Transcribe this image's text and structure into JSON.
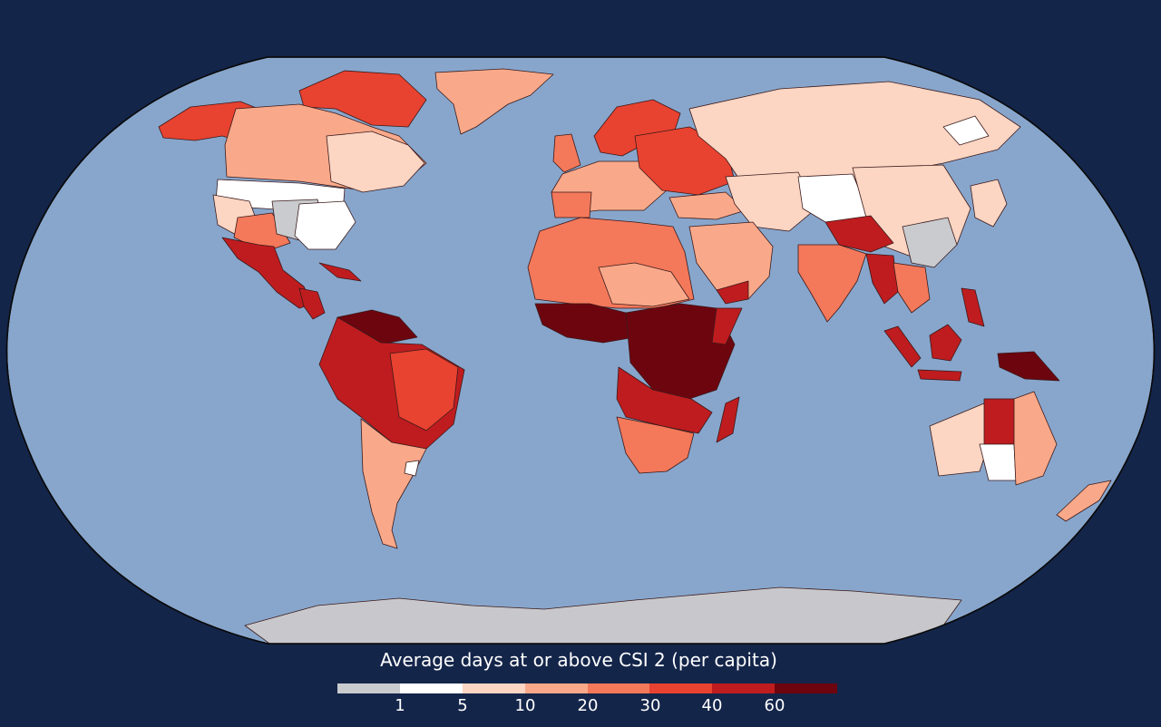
{
  "legend": {
    "title": "Average days at or above CSI 2 (per capita)",
    "colors": [
      "#c9cbce",
      "#ffffff",
      "#fcd5c3",
      "#f9a98a",
      "#f4785a",
      "#e84230",
      "#bf1c1f",
      "#6d050f"
    ],
    "tick_labels": [
      "1",
      "5",
      "10",
      "20",
      "30",
      "40",
      "60"
    ]
  },
  "colors": {
    "background": "#14254a",
    "ocean": "#88a6cc",
    "antarctica": "#c8c8cc",
    "no_data": "#c9cbce"
  }
}
